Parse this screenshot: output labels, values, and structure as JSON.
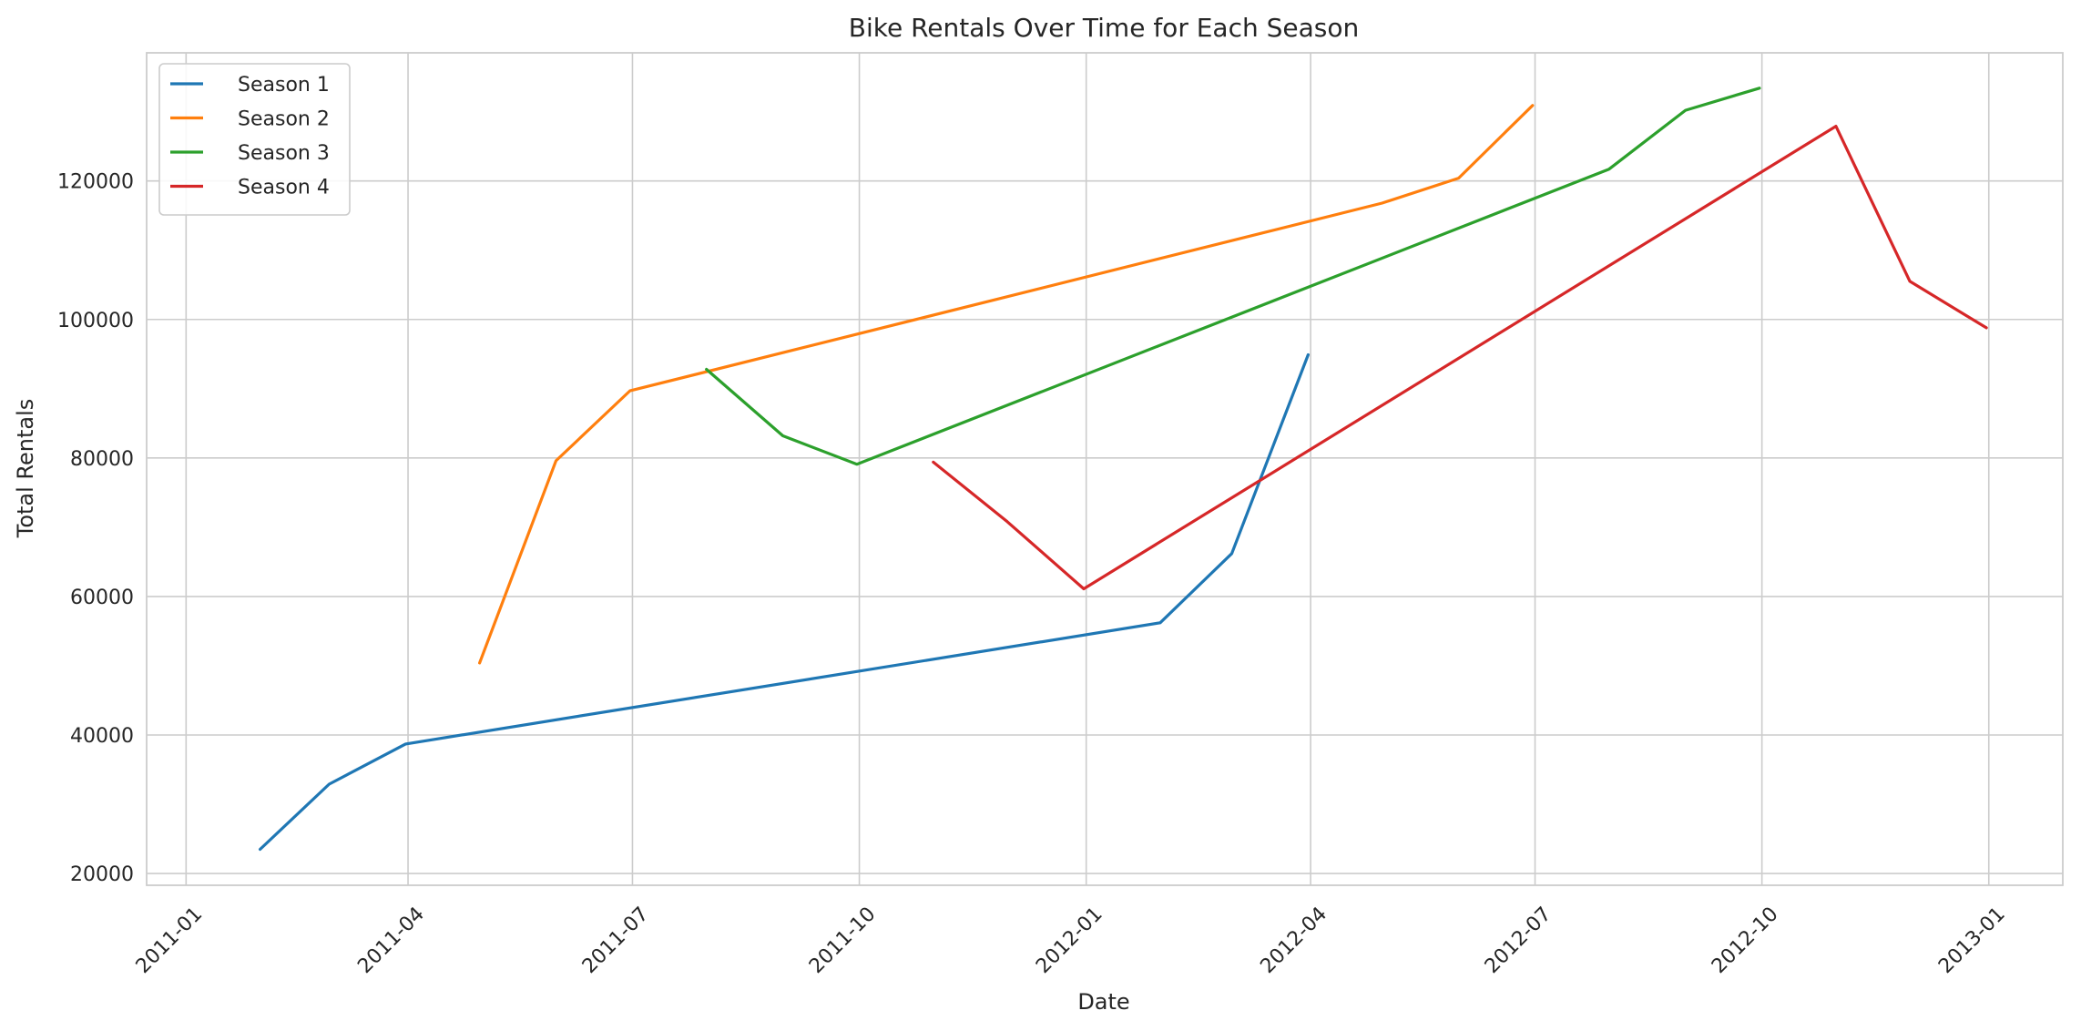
{
  "chart_data": {
    "type": "line",
    "title": "Bike Rentals Over Time for Each Season",
    "xlabel": "Date",
    "ylabel": "Total Rentals",
    "x_ticks": [
      "2011-01",
      "2011-04",
      "2011-07",
      "2011-10",
      "2012-01",
      "2012-04",
      "2012-07",
      "2012-10",
      "2013-01"
    ],
    "y_ticks": [
      20000,
      40000,
      60000,
      80000,
      100000,
      120000
    ],
    "xlim": [
      "2010-12-16",
      "2013-01-31"
    ],
    "ylim": [
      18300,
      138500
    ],
    "grid": true,
    "legend_position": "top-left",
    "series": [
      {
        "name": "Season 1",
        "color": "#1f77b4",
        "points": [
          {
            "x": "2011-01-31",
            "y": 23500
          },
          {
            "x": "2011-02-28",
            "y": 32900
          },
          {
            "x": "2011-03-31",
            "y": 38700
          },
          {
            "x": "2012-01-31",
            "y": 56200
          },
          {
            "x": "2012-02-29",
            "y": 66200
          },
          {
            "x": "2012-03-31",
            "y": 94900
          }
        ]
      },
      {
        "name": "Season 2",
        "color": "#ff7f0e",
        "points": [
          {
            "x": "2011-04-30",
            "y": 50400
          },
          {
            "x": "2011-05-31",
            "y": 79600
          },
          {
            "x": "2011-06-30",
            "y": 89700
          },
          {
            "x": "2012-04-30",
            "y": 116800
          },
          {
            "x": "2012-05-31",
            "y": 120400
          },
          {
            "x": "2012-06-30",
            "y": 130900
          }
        ]
      },
      {
        "name": "Season 3",
        "color": "#2ca02c",
        "points": [
          {
            "x": "2011-07-31",
            "y": 92800
          },
          {
            "x": "2011-08-31",
            "y": 83200
          },
          {
            "x": "2011-09-30",
            "y": 79100
          },
          {
            "x": "2012-07-31",
            "y": 121700
          },
          {
            "x": "2012-08-31",
            "y": 130200
          },
          {
            "x": "2012-09-30",
            "y": 133400
          }
        ]
      },
      {
        "name": "Season 4",
        "color": "#d62728",
        "points": [
          {
            "x": "2011-10-31",
            "y": 79400
          },
          {
            "x": "2011-11-30",
            "y": 70800
          },
          {
            "x": "2011-12-31",
            "y": 61100
          },
          {
            "x": "2012-10-31",
            "y": 127900
          },
          {
            "x": "2012-11-30",
            "y": 105500
          },
          {
            "x": "2012-12-31",
            "y": 98800
          }
        ]
      }
    ]
  }
}
